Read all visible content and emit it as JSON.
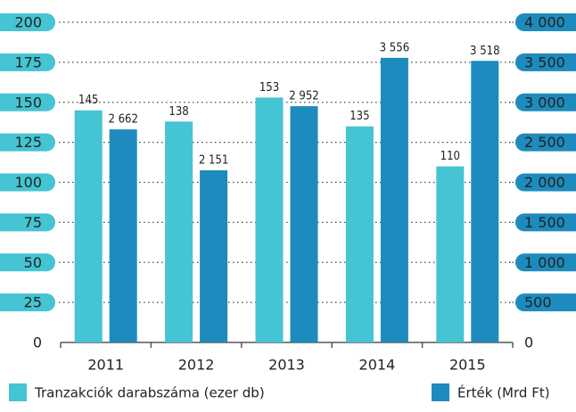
{
  "chart_data": {
    "type": "bar",
    "categories": [
      "2011",
      "2012",
      "2013",
      "2014",
      "2015"
    ],
    "series": [
      {
        "name": "Tranzakciók darabszáma (ezer db)",
        "color": "#45c4d3",
        "values": [
          145,
          138,
          153,
          135,
          110
        ]
      },
      {
        "name": "Érték (Mrd Ft)",
        "color": "#1d8bbd",
        "axis": "y2",
        "values": [
          2662,
          2151,
          2952,
          3556,
          3518
        ],
        "value_labels": [
          "2 662",
          "2 151",
          "2 952",
          "3 556",
          "3 518"
        ]
      }
    ],
    "ylim": [
      0,
      200
    ],
    "yticks": [
      0,
      25,
      50,
      75,
      100,
      125,
      150,
      175,
      200
    ],
    "y2lim": [
      0,
      4000
    ],
    "y2ticks": [
      0,
      500,
      {
        "value": 1000,
        "label": "1 000"
      },
      {
        "value": 1500,
        "label": "1 500"
      },
      {
        "value": 2000,
        "label": "2 000"
      },
      {
        "value": 2500,
        "label": "2 500"
      },
      {
        "value": 3000,
        "label": "3 000"
      },
      {
        "value": 3500,
        "label": "3 500"
      },
      {
        "value": 4000,
        "label": "4 000"
      }
    ],
    "grid": true
  }
}
